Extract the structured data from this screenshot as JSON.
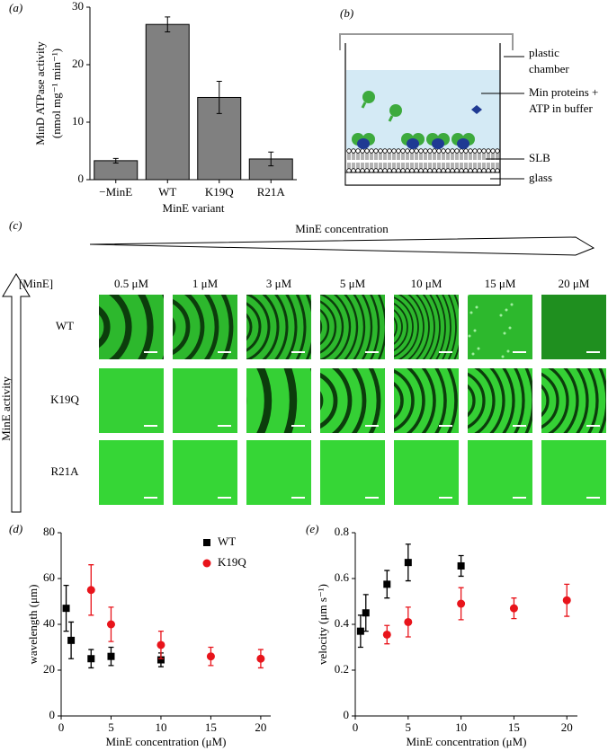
{
  "chart_data": [
    {
      "type": "bar",
      "label": "(a)",
      "ylabel": [
        "MinD ATPase activity",
        "(nmol mg⁻¹ min⁻¹)"
      ],
      "xlabel": "MinE variant",
      "categories": [
        "−MinE",
        "WT",
        "K19Q",
        "R21A"
      ],
      "values": [
        3.3,
        27,
        14.3,
        3.6
      ],
      "errors": [
        0.4,
        1.3,
        2.8,
        1.2
      ],
      "color": "#808080",
      "ylim": [
        0,
        30
      ],
      "yticks": [
        0,
        10,
        20,
        30
      ]
    },
    {
      "type": "scatter",
      "label": "(d)",
      "ylabel": "wavelength (μm)",
      "xlabel": "MinE concentration (μM)",
      "legend": true,
      "series": [
        {
          "name": "WT",
          "color": "#000000",
          "marker": "square",
          "x": [
            0.5,
            1,
            3,
            5,
            10
          ],
          "values": [
            47,
            33,
            25,
            26,
            24.5
          ],
          "errors": [
            10,
            8,
            4,
            4,
            3
          ]
        },
        {
          "name": "K19Q",
          "color": "#e8141b",
          "marker": "circle",
          "x": [
            3,
            5,
            10,
            15,
            20
          ],
          "values": [
            55,
            40,
            31,
            26,
            25
          ],
          "errors": [
            11,
            7.5,
            6,
            4,
            4
          ]
        }
      ],
      "xlim": [
        0,
        21
      ],
      "xticks": [
        0,
        5,
        10,
        15,
        20
      ],
      "ylim": [
        0,
        80
      ],
      "yticks": [
        0,
        20,
        40,
        60,
        80
      ]
    },
    {
      "type": "scatter",
      "label": "(e)",
      "ylabel": "velocity (μm s⁻¹)",
      "xlabel": "MinE concentration (μM)",
      "legend": false,
      "series": [
        {
          "color": "#000000",
          "marker": "square",
          "x": [
            0.5,
            1,
            3,
            5,
            10
          ],
          "values": [
            0.37,
            0.45,
            0.575,
            0.67,
            0.655
          ],
          "errors": [
            0.07,
            0.08,
            0.06,
            0.08,
            0.045
          ]
        },
        {
          "color": "#e8141b",
          "marker": "circle",
          "x": [
            3,
            5,
            10,
            15,
            20
          ],
          "values": [
            0.355,
            0.41,
            0.49,
            0.47,
            0.505
          ],
          "errors": [
            0.04,
            0.065,
            0.07,
            0.045,
            0.07
          ]
        }
      ],
      "xlim": [
        0,
        21
      ],
      "xticks": [
        0,
        5,
        10,
        15,
        20
      ],
      "ylim": [
        0,
        0.8
      ],
      "yticks": [
        0,
        0.2,
        0.4,
        0.6,
        0.8
      ]
    }
  ],
  "panel_b": {
    "label": "(b)",
    "plastic_chamber": [
      "plastic",
      "chamber"
    ],
    "min_proteins": [
      "Min proteins +",
      "ATP in buffer"
    ],
    "slb": "SLB",
    "glass": "glass"
  },
  "panel_c": {
    "label": "(c)",
    "arrow_label": "MinE concentration",
    "header": "[MinE]",
    "columns": [
      "0.5 μM",
      "1 μM",
      "3 μM",
      "5 μM",
      "10 μM",
      "15 μM",
      "20 μM"
    ],
    "rows": [
      "WT",
      "K19Q",
      "R21A"
    ],
    "axis_label": "MinE activity"
  }
}
